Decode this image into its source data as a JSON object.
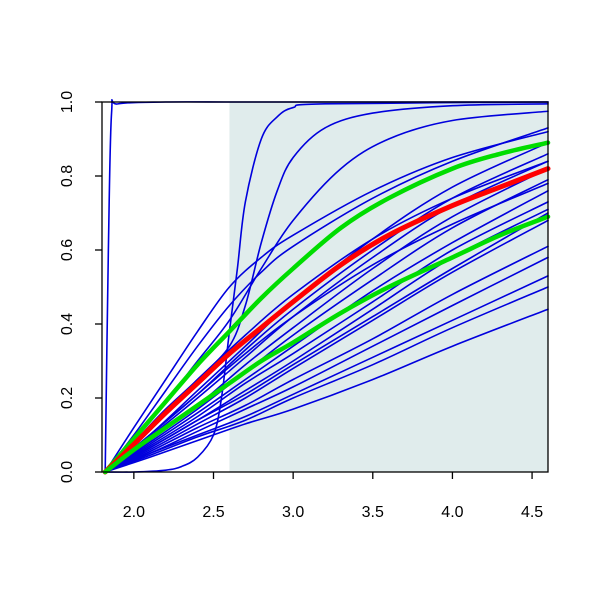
{
  "chart_data": {
    "type": "line",
    "title": "",
    "xlabel": "",
    "ylabel": "",
    "xlim": [
      1.8,
      4.6
    ],
    "ylim": [
      0.0,
      1.0
    ],
    "grid": false,
    "legend": "none",
    "x_ticks": [
      2.0,
      2.5,
      3.0,
      3.5,
      4.0,
      4.5
    ],
    "x_tick_labels": [
      "2.0",
      "2.5",
      "3.0",
      "3.5",
      "4.0",
      "4.5"
    ],
    "y_ticks": [
      0.0,
      0.2,
      0.4,
      0.6,
      0.8,
      1.0
    ],
    "y_tick_labels": [
      "0.0",
      "0.2",
      "0.4",
      "0.6",
      "0.8",
      "1.0"
    ],
    "shaded_region": {
      "x_start": 2.6,
      "x_end": 4.6,
      "color": "#e0ecec"
    },
    "colors": {
      "samples": "#0000dd",
      "mean": "#ff0000",
      "bounds": "#00dd00",
      "shade": "#e0ecec"
    },
    "x_origin": 1.82,
    "series": [
      {
        "role": "sample",
        "color": "#0000dd",
        "width": 1.6,
        "points": [
          [
            1.82,
            0.0
          ],
          [
            1.84,
            0.6
          ],
          [
            1.86,
            0.97
          ],
          [
            1.9,
            0.995
          ],
          [
            2.2,
            1.0
          ],
          [
            2.6,
            1.0
          ],
          [
            3.0,
            1.0
          ],
          [
            4.6,
            1.0
          ]
        ]
      },
      {
        "role": "sample",
        "color": "#0000dd",
        "width": 1.6,
        "points": [
          [
            1.82,
            0.0
          ],
          [
            2.0,
            0.0
          ],
          [
            2.2,
            0.005
          ],
          [
            2.3,
            0.015
          ],
          [
            2.4,
            0.04
          ],
          [
            2.5,
            0.1
          ],
          [
            2.55,
            0.2
          ],
          [
            2.6,
            0.38
          ],
          [
            2.65,
            0.55
          ],
          [
            2.7,
            0.73
          ],
          [
            2.8,
            0.9
          ],
          [
            2.9,
            0.96
          ],
          [
            3.0,
            0.985
          ],
          [
            3.2,
            0.995
          ],
          [
            4.6,
            1.0
          ]
        ]
      },
      {
        "role": "sample",
        "color": "#0000dd",
        "width": 1.6,
        "points": [
          [
            1.82,
            0.0
          ],
          [
            2.0,
            0.08
          ],
          [
            2.2,
            0.17
          ],
          [
            2.4,
            0.25
          ],
          [
            2.6,
            0.34
          ],
          [
            2.7,
            0.45
          ],
          [
            2.8,
            0.62
          ],
          [
            2.9,
            0.76
          ],
          [
            3.0,
            0.85
          ],
          [
            3.2,
            0.93
          ],
          [
            3.5,
            0.97
          ],
          [
            4.0,
            0.99
          ],
          [
            4.6,
            0.995
          ]
        ]
      },
      {
        "role": "sample",
        "color": "#0000dd",
        "width": 1.6,
        "points": [
          [
            1.82,
            0.0
          ],
          [
            2.0,
            0.09
          ],
          [
            2.2,
            0.19
          ],
          [
            2.4,
            0.3
          ],
          [
            2.6,
            0.41
          ],
          [
            2.8,
            0.55
          ],
          [
            3.0,
            0.68
          ],
          [
            3.3,
            0.82
          ],
          [
            3.6,
            0.9
          ],
          [
            4.0,
            0.95
          ],
          [
            4.6,
            0.975
          ]
        ]
      },
      {
        "role": "sample",
        "color": "#0000dd",
        "width": 1.6,
        "points": [
          [
            1.82,
            0.0
          ],
          [
            2.0,
            0.12
          ],
          [
            2.2,
            0.25
          ],
          [
            2.4,
            0.38
          ],
          [
            2.6,
            0.5
          ],
          [
            2.8,
            0.58
          ],
          [
            3.0,
            0.64
          ],
          [
            3.5,
            0.76
          ],
          [
            4.0,
            0.85
          ],
          [
            4.6,
            0.92
          ]
        ]
      },
      {
        "role": "sample",
        "color": "#0000dd",
        "width": 1.6,
        "points": [
          [
            1.82,
            0.0
          ],
          [
            2.0,
            0.1
          ],
          [
            2.2,
            0.22
          ],
          [
            2.4,
            0.34
          ],
          [
            2.6,
            0.45
          ],
          [
            2.8,
            0.54
          ],
          [
            3.0,
            0.61
          ],
          [
            3.5,
            0.74
          ],
          [
            4.0,
            0.84
          ],
          [
            4.6,
            0.93
          ]
        ]
      },
      {
        "role": "sample",
        "color": "#0000dd",
        "width": 1.6,
        "points": [
          [
            1.82,
            0.0
          ],
          [
            2.1,
            0.1
          ],
          [
            2.4,
            0.22
          ],
          [
            2.7,
            0.34
          ],
          [
            3.0,
            0.46
          ],
          [
            3.5,
            0.63
          ],
          [
            4.0,
            0.77
          ],
          [
            4.6,
            0.89
          ]
        ]
      },
      {
        "role": "sample",
        "color": "#0000dd",
        "width": 1.6,
        "points": [
          [
            1.82,
            0.0
          ],
          [
            2.1,
            0.1
          ],
          [
            2.4,
            0.21
          ],
          [
            2.7,
            0.33
          ],
          [
            3.0,
            0.44
          ],
          [
            3.5,
            0.6
          ],
          [
            4.0,
            0.74
          ],
          [
            4.6,
            0.86
          ]
        ]
      },
      {
        "role": "sample",
        "color": "#0000dd",
        "width": 1.6,
        "points": [
          [
            1.82,
            0.0
          ],
          [
            2.1,
            0.095
          ],
          [
            2.4,
            0.2
          ],
          [
            2.7,
            0.31
          ],
          [
            3.0,
            0.42
          ],
          [
            3.5,
            0.58
          ],
          [
            4.0,
            0.72
          ],
          [
            4.6,
            0.84
          ]
        ]
      },
      {
        "role": "sample",
        "color": "#0000dd",
        "width": 1.6,
        "points": [
          [
            1.82,
            0.0
          ],
          [
            2.1,
            0.085
          ],
          [
            2.4,
            0.18
          ],
          [
            2.7,
            0.29
          ],
          [
            3.0,
            0.39
          ],
          [
            3.5,
            0.55
          ],
          [
            4.0,
            0.69
          ],
          [
            4.6,
            0.82
          ]
        ]
      },
      {
        "role": "sample",
        "color": "#0000dd",
        "width": 1.6,
        "points": [
          [
            1.82,
            0.0
          ],
          [
            2.1,
            0.08
          ],
          [
            2.4,
            0.17
          ],
          [
            2.7,
            0.27
          ],
          [
            3.0,
            0.37
          ],
          [
            3.5,
            0.52
          ],
          [
            4.0,
            0.66
          ],
          [
            4.6,
            0.79
          ]
        ]
      },
      {
        "role": "sample",
        "color": "#0000dd",
        "width": 1.6,
        "points": [
          [
            1.82,
            0.0
          ],
          [
            2.1,
            0.075
          ],
          [
            2.4,
            0.16
          ],
          [
            2.7,
            0.25
          ],
          [
            3.0,
            0.34
          ],
          [
            3.5,
            0.49
          ],
          [
            4.0,
            0.62
          ],
          [
            4.6,
            0.76
          ]
        ]
      },
      {
        "role": "sample",
        "color": "#0000dd",
        "width": 1.6,
        "points": [
          [
            1.82,
            0.0
          ],
          [
            2.1,
            0.07
          ],
          [
            2.4,
            0.15
          ],
          [
            2.7,
            0.24
          ],
          [
            3.0,
            0.32
          ],
          [
            3.5,
            0.46
          ],
          [
            4.0,
            0.6
          ],
          [
            4.6,
            0.73
          ]
        ]
      },
      {
        "role": "sample",
        "color": "#0000dd",
        "width": 1.6,
        "points": [
          [
            1.82,
            0.0
          ],
          [
            2.1,
            0.065
          ],
          [
            2.4,
            0.14
          ],
          [
            2.7,
            0.22
          ],
          [
            3.0,
            0.3
          ],
          [
            3.5,
            0.44
          ],
          [
            4.0,
            0.58
          ],
          [
            4.6,
            0.71
          ]
        ]
      },
      {
        "role": "sample",
        "color": "#0000dd",
        "width": 1.6,
        "points": [
          [
            1.82,
            0.0
          ],
          [
            2.1,
            0.06
          ],
          [
            2.4,
            0.13
          ],
          [
            2.7,
            0.2
          ],
          [
            3.0,
            0.28
          ],
          [
            3.5,
            0.41
          ],
          [
            4.0,
            0.54
          ],
          [
            4.6,
            0.68
          ]
        ]
      },
      {
        "role": "sample",
        "color": "#0000dd",
        "width": 1.6,
        "points": [
          [
            1.82,
            0.0
          ],
          [
            2.1,
            0.055
          ],
          [
            2.4,
            0.12
          ],
          [
            2.7,
            0.18
          ],
          [
            3.0,
            0.25
          ],
          [
            3.5,
            0.36
          ],
          [
            4.0,
            0.48
          ],
          [
            4.6,
            0.61
          ]
        ]
      },
      {
        "role": "sample",
        "color": "#0000dd",
        "width": 1.6,
        "points": [
          [
            1.82,
            0.0
          ],
          [
            2.1,
            0.05
          ],
          [
            2.4,
            0.11
          ],
          [
            2.7,
            0.17
          ],
          [
            3.0,
            0.23
          ],
          [
            3.5,
            0.34
          ],
          [
            4.0,
            0.45
          ],
          [
            4.6,
            0.58
          ]
        ]
      },
      {
        "role": "sample",
        "color": "#0000dd",
        "width": 1.6,
        "points": [
          [
            1.82,
            0.0
          ],
          [
            2.1,
            0.05
          ],
          [
            2.4,
            0.1
          ],
          [
            2.7,
            0.15
          ],
          [
            3.0,
            0.21
          ],
          [
            3.5,
            0.31
          ],
          [
            4.0,
            0.41
          ],
          [
            4.6,
            0.53
          ]
        ]
      },
      {
        "role": "sample",
        "color": "#0000dd",
        "width": 1.6,
        "points": [
          [
            1.82,
            0.0
          ],
          [
            2.1,
            0.045
          ],
          [
            2.4,
            0.095
          ],
          [
            2.7,
            0.14
          ],
          [
            3.0,
            0.2
          ],
          [
            3.5,
            0.29
          ],
          [
            4.0,
            0.39
          ],
          [
            4.6,
            0.5
          ]
        ]
      },
      {
        "role": "sample",
        "color": "#0000dd",
        "width": 1.6,
        "points": [
          [
            1.82,
            0.0
          ],
          [
            2.1,
            0.04
          ],
          [
            2.4,
            0.085
          ],
          [
            2.7,
            0.13
          ],
          [
            3.0,
            0.17
          ],
          [
            3.5,
            0.25
          ],
          [
            4.0,
            0.34
          ],
          [
            4.6,
            0.44
          ]
        ]
      },
      {
        "role": "sample",
        "color": "#0000dd",
        "width": 1.6,
        "points": [
          [
            1.82,
            0.0
          ],
          [
            2.1,
            0.12
          ],
          [
            2.4,
            0.25
          ],
          [
            2.7,
            0.37
          ],
          [
            3.0,
            0.48
          ],
          [
            3.5,
            0.63
          ],
          [
            4.0,
            0.74
          ],
          [
            4.6,
            0.84
          ]
        ]
      },
      {
        "role": "sample",
        "color": "#0000dd",
        "width": 1.6,
        "points": [
          [
            1.82,
            0.0
          ],
          [
            2.1,
            0.1
          ],
          [
            2.4,
            0.21
          ],
          [
            2.7,
            0.32
          ],
          [
            3.0,
            0.42
          ],
          [
            3.5,
            0.56
          ],
          [
            4.0,
            0.67
          ],
          [
            4.6,
            0.78
          ]
        ]
      },
      {
        "role": "sample",
        "color": "#0000dd",
        "width": 1.6,
        "points": [
          [
            1.82,
            0.0
          ],
          [
            2.1,
            0.065
          ],
          [
            2.4,
            0.14
          ],
          [
            2.7,
            0.21
          ],
          [
            3.0,
            0.29
          ],
          [
            3.5,
            0.42
          ],
          [
            4.0,
            0.55
          ],
          [
            4.6,
            0.7
          ]
        ]
      },
      {
        "role": "bound",
        "name": "",
        "color": "#00dd00",
        "width": 4.5,
        "points": [
          [
            1.82,
            0.0
          ],
          [
            2.0,
            0.09
          ],
          [
            2.2,
            0.19
          ],
          [
            2.4,
            0.29
          ],
          [
            2.6,
            0.38
          ],
          [
            2.8,
            0.47
          ],
          [
            3.0,
            0.55
          ],
          [
            3.3,
            0.66
          ],
          [
            3.6,
            0.74
          ],
          [
            4.0,
            0.82
          ],
          [
            4.3,
            0.86
          ],
          [
            4.6,
            0.89
          ]
        ]
      },
      {
        "role": "mean",
        "name": "",
        "color": "#ff0000",
        "width": 5,
        "points": [
          [
            1.82,
            0.0
          ],
          [
            2.0,
            0.075
          ],
          [
            2.2,
            0.16
          ],
          [
            2.4,
            0.24
          ],
          [
            2.6,
            0.32
          ],
          [
            2.8,
            0.39
          ],
          [
            3.0,
            0.46
          ],
          [
            3.3,
            0.56
          ],
          [
            3.6,
            0.64
          ],
          [
            4.0,
            0.72
          ],
          [
            4.3,
            0.77
          ],
          [
            4.6,
            0.82
          ]
        ]
      },
      {
        "role": "bound",
        "name": "",
        "color": "#00dd00",
        "width": 4.5,
        "points": [
          [
            1.82,
            0.0
          ],
          [
            2.0,
            0.06
          ],
          [
            2.2,
            0.12
          ],
          [
            2.4,
            0.18
          ],
          [
            2.6,
            0.24
          ],
          [
            2.8,
            0.3
          ],
          [
            3.0,
            0.35
          ],
          [
            3.3,
            0.43
          ],
          [
            3.6,
            0.5
          ],
          [
            4.0,
            0.58
          ],
          [
            4.3,
            0.64
          ],
          [
            4.6,
            0.69
          ]
        ]
      }
    ]
  }
}
